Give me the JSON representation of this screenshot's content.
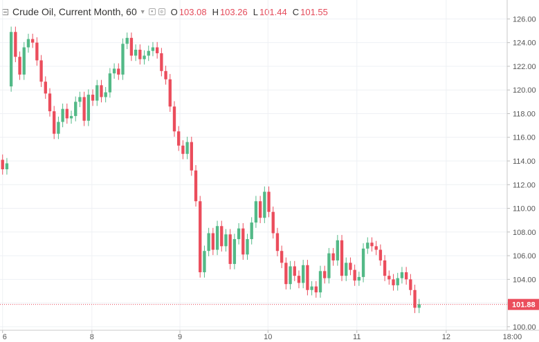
{
  "legend": {
    "symbol": "Crude Oil, Current Month, 60",
    "open_label": "O",
    "open_value": "103.08",
    "high_label": "H",
    "high_value": "103.26",
    "low_label": "L",
    "low_value": "101.44",
    "close_label": "C",
    "close_value": "101.55"
  },
  "chart_data": {
    "type": "candlestick",
    "title": "Crude Oil, Current Month, 60",
    "y_axis": {
      "position": "right",
      "range": [
        99.7,
        127.6
      ],
      "tick_labels": [
        "100.00",
        "102.00",
        "104.00",
        "106.00",
        "108.00",
        "110.00",
        "112.00",
        "114.00",
        "116.00",
        "118.00",
        "120.00",
        "122.00",
        "124.00",
        "126.00"
      ]
    },
    "x_axis": {
      "range_index": [
        -0.6,
        117.5
      ],
      "tick_labels": [
        {
          "label": "6",
          "index": 0
        },
        {
          "label": "8",
          "index": 20.8
        },
        {
          "label": "9",
          "index": 41.3
        },
        {
          "label": "10",
          "index": 61.8
        },
        {
          "label": "11",
          "index": 82.5
        },
        {
          "label": "12",
          "index": 103.3
        },
        {
          "label": "18:00",
          "index": 118.7
        }
      ]
    },
    "last_price": {
      "value": 101.88,
      "label": "101.88"
    },
    "colors": {
      "up": "#53b987",
      "down": "#eb4d5c",
      "grid": "#eef0f4",
      "axis_text": "#555555",
      "last_price_bg": "#eb4d5c"
    },
    "grid": true,
    "candles": [
      [
        114.1,
        113.3
      ],
      [
        113.3,
        113.8
      ],
      [
        120.3,
        124.9
      ],
      [
        124.9,
        122.8
      ],
      [
        122.8,
        121.3
      ],
      [
        121.3,
        123.6
      ],
      [
        123.6,
        124.3
      ],
      [
        124.3,
        124.0
      ],
      [
        124.0,
        122.5
      ],
      [
        122.5,
        120.7
      ],
      [
        120.7,
        119.7
      ],
      [
        119.7,
        118.2
      ],
      [
        118.2,
        116.3
      ],
      [
        116.3,
        117.3
      ],
      [
        117.3,
        118.4
      ],
      [
        118.4,
        117.6
      ],
      [
        117.6,
        117.8
      ],
      [
        117.8,
        119.0
      ],
      [
        119.0,
        119.4
      ],
      [
        119.4,
        117.4
      ],
      [
        117.4,
        119.6
      ],
      [
        119.6,
        119.1
      ],
      [
        119.1,
        120.4
      ],
      [
        120.4,
        119.4
      ],
      [
        119.4,
        119.8
      ],
      [
        119.8,
        121.4
      ],
      [
        121.4,
        121.8
      ],
      [
        121.8,
        121.3
      ],
      [
        121.3,
        123.9
      ],
      [
        123.9,
        124.4
      ],
      [
        124.4,
        122.9
      ],
      [
        122.9,
        123.4
      ],
      [
        123.4,
        122.6
      ],
      [
        122.6,
        122.9
      ],
      [
        122.9,
        123.3
      ],
      [
        123.3,
        123.6
      ],
      [
        123.6,
        123.1
      ],
      [
        123.1,
        121.6
      ],
      [
        121.6,
        120.9
      ],
      [
        120.9,
        118.6
      ],
      [
        118.6,
        116.5
      ],
      [
        116.5,
        115.3
      ],
      [
        115.3,
        114.6
      ],
      [
        114.6,
        115.6
      ],
      [
        115.6,
        113.2
      ],
      [
        113.2,
        110.6
      ],
      [
        110.6,
        104.6
      ],
      [
        104.6,
        106.4
      ],
      [
        106.4,
        107.9
      ],
      [
        107.9,
        106.5
      ],
      [
        106.5,
        108.5
      ],
      [
        108.5,
        106.8
      ],
      [
        106.8,
        107.8
      ],
      [
        107.8,
        105.3
      ],
      [
        105.3,
        107.4
      ],
      [
        107.4,
        108.3
      ],
      [
        108.3,
        106.1
      ],
      [
        106.1,
        107.4
      ],
      [
        107.4,
        108.8
      ],
      [
        108.8,
        110.6
      ],
      [
        110.6,
        109.2
      ],
      [
        109.2,
        111.4
      ],
      [
        111.4,
        109.7
      ],
      [
        109.7,
        107.9
      ],
      [
        107.9,
        106.4
      ],
      [
        106.4,
        105.4
      ],
      [
        105.4,
        103.6
      ],
      [
        103.6,
        105.1
      ],
      [
        105.1,
        104.3
      ],
      [
        104.3,
        103.7
      ],
      [
        103.7,
        105.2
      ],
      [
        105.2,
        103.1
      ],
      [
        103.1,
        103.4
      ],
      [
        103.4,
        102.9
      ],
      [
        102.9,
        104.7
      ],
      [
        104.7,
        104.1
      ],
      [
        104.1,
        106.2
      ],
      [
        106.2,
        105.6
      ],
      [
        105.6,
        107.3
      ],
      [
        107.3,
        104.3
      ],
      [
        104.3,
        105.4
      ],
      [
        105.4,
        104.8
      ],
      [
        104.8,
        103.9
      ],
      [
        103.9,
        104.2
      ],
      [
        104.2,
        106.6
      ],
      [
        106.6,
        107.1
      ],
      [
        107.1,
        106.8
      ],
      [
        106.8,
        106.5
      ],
      [
        106.5,
        105.6
      ],
      [
        105.6,
        104.3
      ],
      [
        104.3,
        104.0
      ],
      [
        104.0,
        103.5
      ],
      [
        103.5,
        104.1
      ],
      [
        104.1,
        104.6
      ],
      [
        104.6,
        104.0
      ],
      [
        104.0,
        103.1
      ],
      [
        103.1,
        101.6
      ],
      [
        101.6,
        101.9
      ]
    ]
  }
}
